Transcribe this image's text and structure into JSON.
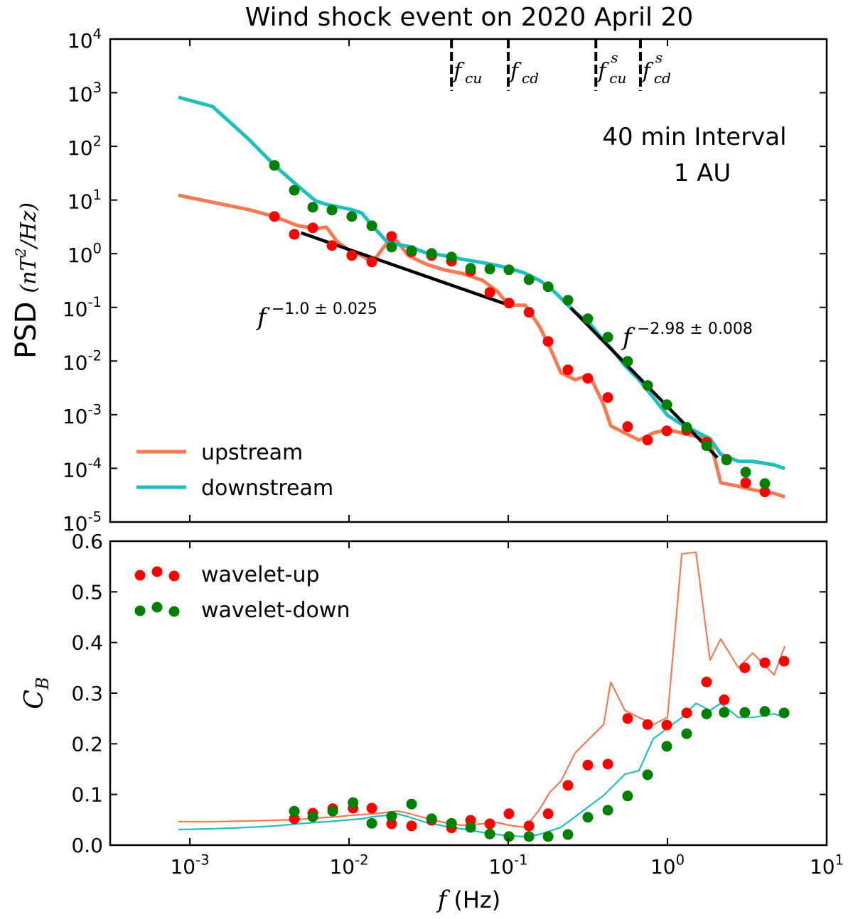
{
  "chart_data": [
    {
      "type": "line",
      "title": "Wind shock event on 2020 April 20",
      "ylabel": {
        "text": "PSD",
        "base": "(nT",
        "sup": "2",
        "end": "/Hz)"
      },
      "xlog": true,
      "ylog": true,
      "xlim": [
        0.000316,
        10
      ],
      "ylim": [
        1e-05,
        10000
      ],
      "yticks": [
        {
          "value": 10000,
          "label": "10^4"
        },
        {
          "value": 1000,
          "label": "10^3"
        },
        {
          "value": 100,
          "label": "10^2"
        },
        {
          "value": 10,
          "label": "10^1"
        },
        {
          "value": 1,
          "label": "10^0"
        },
        {
          "value": 0.1,
          "label": "10^-1"
        },
        {
          "value": 0.01,
          "label": "10^-2"
        },
        {
          "value": 0.001,
          "label": "10^-3"
        },
        {
          "value": 0.0001,
          "label": "10^-4"
        },
        {
          "value": 1e-05,
          "label": "10^-5"
        }
      ],
      "legend": "lower left",
      "annotations": [
        "40 min Interval",
        "1 AU"
      ],
      "x": [
        0.000848,
        0.00139,
        0.00232,
        0.0034,
        0.00477,
        0.00617,
        0.0072,
        0.00839,
        0.0103,
        0.012,
        0.014,
        0.0172,
        0.0201,
        0.0235,
        0.0303,
        0.0393,
        0.0507,
        0.069,
        0.0849,
        0.101,
        0.128,
        0.157,
        0.183,
        0.214,
        0.263,
        0.323,
        0.397,
        0.44,
        0.54,
        0.662,
        0.814,
        1.0,
        1.23,
        1.51,
        1.85,
        2.16,
        2.79,
        3.43,
        4.68,
        5.46
      ],
      "series": [
        {
          "name": "upstream",
          "color": "#f47a52",
          "values": [
            12.3,
            9.08,
            6.69,
            4.93,
            3.32,
            2.94,
            3.13,
            1.7,
            1.08,
            0.924,
            0.681,
            1.55,
            1.7,
            0.924,
            0.641,
            0.502,
            0.431,
            0.318,
            0.201,
            0.11,
            0.11,
            0.044,
            0.0176,
            0.00607,
            0.00448,
            0.00553,
            0.00154,
            0.000618,
            0.000456,
            0.000336,
            0.000456,
            0.000531,
            0.000456,
            0.000392,
            0.000336,
            5.4e-05,
            4.65e-05,
            3.99e-05,
            3.42e-05,
            2.94e-05
          ]
        },
        {
          "name": "downstream",
          "color": "#1fbfc0",
          "values": [
            822,
            553,
            140,
            44.2,
            18.3,
            9.64,
            8.28,
            7.55,
            6.69,
            5.74,
            3.32,
            1.7,
            1.5,
            1.37,
            1.04,
            0.924,
            0.793,
            0.681,
            0.603,
            0.535,
            0.431,
            0.318,
            0.234,
            0.149,
            0.0808,
            0.0512,
            0.0239,
            0.0176,
            0.00823,
            0.00448,
            0.00209,
            0.000975,
            0.000656,
            0.000484,
            0.000357,
            0.000183,
            0.000135,
            0.000135,
            0.000116,
            9.93e-05
          ]
        }
      ],
      "points": {
        "x": [
          0.0034,
          0.00453,
          0.00592,
          0.00781,
          0.0104,
          0.0139,
          0.0185,
          0.0247,
          0.033,
          0.044,
          0.058,
          0.0766,
          0.101,
          0.135,
          0.178,
          0.237,
          0.316,
          0.422,
          0.562,
          0.75,
          0.99,
          1.32,
          1.76,
          2.35,
          3.1,
          4.09
        ],
        "series": [
          {
            "color": "#ff0000",
            "values": [
              4.93,
              2.3,
              3.03,
              1.42,
              0.924,
              0.703,
              2.1,
              1.08,
              0.924,
              0.724,
              0.473,
              0.19,
              0.12,
              0.0808,
              0.0232,
              0.00686,
              0.00476,
              0.00209,
              0.0006,
              0.000336,
              0.000499,
              0.000515,
              0.000307,
              0.000148,
              5.4e-05,
              3.64e-05
            ]
          },
          {
            "color": "#008000",
            "values": [
              44.2,
              15.2,
              7.33,
              6.49,
              4.93,
              3.32,
              1.33,
              1.14,
              1.01,
              0.869,
              0.535,
              0.518,
              0.502,
              0.328,
              0.242,
              0.136,
              0.0614,
              0.0278,
              0.00988,
              0.00351,
              0.00154,
              0.000582,
              0.000264,
              0.000143,
              8.5e-05,
              5.2e-05
            ]
          }
        ]
      },
      "fits": [
        {
          "x": [
            0.005,
            0.095
          ],
          "values": [
            2.45,
            0.117
          ],
          "color": "#000000",
          "label": {
            "base": "f",
            "sup": "−1.0 ± 0.025"
          }
        },
        {
          "x": [
            0.247,
            2.06
          ],
          "values": [
            0.098,
            0.000158
          ],
          "color": "#000000",
          "label": {
            "base": "f",
            "sup": "−2.98 ± 0.008"
          }
        }
      ],
      "markers": [
        {
          "x": 0.044,
          "base": "f",
          "sub": "cu"
        },
        {
          "x": 0.1,
          "base": "f",
          "sub": "cd"
        },
        {
          "x": 0.355,
          "base": "f",
          "sub": "cu",
          "sup": "s"
        },
        {
          "x": 0.676,
          "base": "f",
          "sub": "cd",
          "sup": "s"
        }
      ]
    },
    {
      "type": "line",
      "xlabel": {
        "base": "f",
        "text": "(Hz)"
      },
      "ylabel": {
        "base": "C",
        "sub": "B"
      },
      "xlog": true,
      "ylog": false,
      "xlim": [
        0.000316,
        10
      ],
      "ylim": [
        0,
        0.6
      ],
      "xticks": [
        {
          "value": 0.001,
          "label": "10^-3"
        },
        {
          "value": 0.01,
          "label": "10^-2"
        },
        {
          "value": 0.1,
          "label": "10^-1"
        },
        {
          "value": 1,
          "label": "10^0"
        },
        {
          "value": 10,
          "label": "10^1"
        }
      ],
      "yticks": [
        {
          "value": 0,
          "label": "0.0"
        },
        0.1,
        0.2,
        0.3,
        0.4,
        0.5,
        0.6
      ],
      "legend": "upper left",
      "x": [
        0.000848,
        0.00139,
        0.00232,
        0.0034,
        0.00477,
        0.00617,
        0.0072,
        0.00839,
        0.0103,
        0.012,
        0.014,
        0.0172,
        0.0201,
        0.0235,
        0.0303,
        0.0393,
        0.0507,
        0.069,
        0.0849,
        0.101,
        0.128,
        0.157,
        0.183,
        0.214,
        0.263,
        0.323,
        0.397,
        0.44,
        0.54,
        0.662,
        0.814,
        1.0,
        1.23,
        1.51,
        1.85,
        2.16,
        2.79,
        3.43,
        4.68,
        5.46
      ],
      "series": [
        {
          "color": "#f47a52",
          "values": [
            0.0463,
            0.0463,
            0.0477,
            0.0491,
            0.0505,
            0.0533,
            0.0547,
            0.0561,
            0.0589,
            0.0603,
            0.0617,
            0.0645,
            0.0673,
            0.0631,
            0.0533,
            0.0449,
            0.0393,
            0.0421,
            0.0449,
            0.0393,
            0.035,
            0.0701,
            0.105,
            0.126,
            0.182,
            0.21,
            0.238,
            0.322,
            0.266,
            0.252,
            0.238,
            0.252,
            0.575,
            0.578,
            0.365,
            0.407,
            0.35,
            0.379,
            0.336,
            0.393
          ]
        },
        {
          "color": "#1fbfc0",
          "values": [
            0.0308,
            0.0322,
            0.035,
            0.0379,
            0.0421,
            0.0449,
            0.0463,
            0.0477,
            0.0505,
            0.0519,
            0.0561,
            0.0589,
            0.0617,
            0.0561,
            0.0449,
            0.0379,
            0.0322,
            0.0252,
            0.021,
            0.0182,
            0.0168,
            0.021,
            0.028,
            0.035,
            0.0561,
            0.0771,
            0.0981,
            0.112,
            0.14,
            0.147,
            0.21,
            0.231,
            0.252,
            0.28,
            0.266,
            0.28,
            0.252,
            0.252,
            0.259,
            0.252
          ]
        }
      ],
      "points": {
        "x": [
          0.00453,
          0.00592,
          0.0079,
          0.0106,
          0.0139,
          0.0185,
          0.0247,
          0.033,
          0.044,
          0.058,
          0.0766,
          0.101,
          0.135,
          0.178,
          0.237,
          0.316,
          0.422,
          0.562,
          0.75,
          0.99,
          1.32,
          1.76,
          2.27,
          3.06,
          4.09,
          5.4
        ],
        "series": [
          {
            "name": "wavelet-up",
            "color": "#ff0000",
            "values": [
              0.052,
              0.063,
              0.072,
              0.073,
              0.073,
              0.042,
              0.038,
              0.049,
              0.034,
              0.049,
              0.042,
              0.062,
              0.038,
              0.062,
              0.118,
              0.158,
              0.16,
              0.25,
              0.238,
              0.237,
              0.261,
              0.322,
              0.287,
              0.35,
              0.36,
              0.363
            ]
          },
          {
            "name": "wavelet-down",
            "color": "#008000",
            "values": [
              0.067,
              0.056,
              0.067,
              0.084,
              0.043,
              0.057,
              0.081,
              0.052,
              0.043,
              0.035,
              0.022,
              0.017,
              0.017,
              0.017,
              0.021,
              0.055,
              0.069,
              0.097,
              0.139,
              0.195,
              0.22,
              0.259,
              0.262,
              0.262,
              0.264,
              0.261
            ]
          }
        ]
      }
    }
  ]
}
